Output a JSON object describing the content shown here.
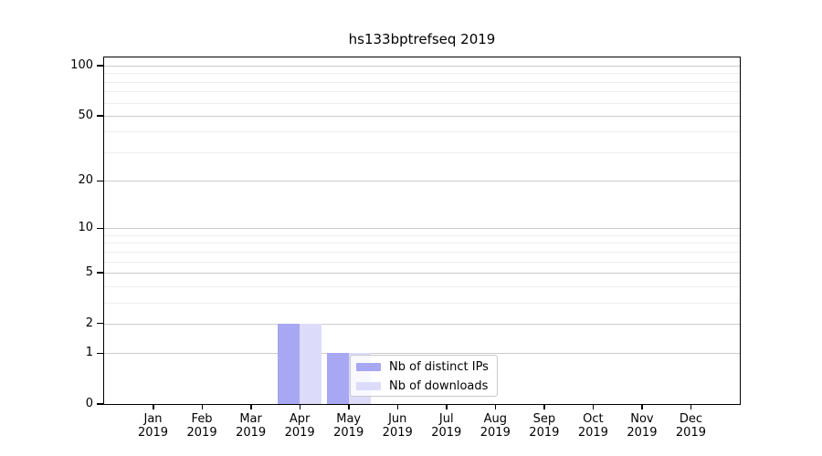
{
  "chart_data": {
    "type": "bar",
    "title": "hs133bptrefseq 2019",
    "categories": [
      "Jan 2019",
      "Feb 2019",
      "Mar 2019",
      "Apr 2019",
      "May 2019",
      "Jun 2019",
      "Jul 2019",
      "Aug 2019",
      "Sep 2019",
      "Oct 2019",
      "Nov 2019",
      "Dec 2019"
    ],
    "series": [
      {
        "name": "Nb of distinct IPs",
        "color": "#a7a7f3",
        "values": [
          0,
          0,
          0,
          2,
          1,
          0,
          0,
          0,
          0,
          0,
          0,
          0
        ]
      },
      {
        "name": "Nb of downloads",
        "color": "#dcdcfa",
        "values": [
          0,
          0,
          0,
          2,
          1,
          0,
          0,
          0,
          0,
          0,
          0,
          0
        ]
      }
    ],
    "xlabel": "",
    "ylabel": "",
    "yscale": "log1p",
    "ylim": [
      0,
      112
    ],
    "yticks": [
      0,
      1,
      2,
      5,
      10,
      20,
      50,
      100
    ],
    "minor_gridlines": [
      3,
      4,
      6,
      7,
      8,
      9,
      30,
      40,
      60,
      70,
      80,
      90
    ],
    "grid": true,
    "legend": {
      "position": "lower center"
    },
    "colors": {
      "major_grid": "#cccccc",
      "minor_grid": "#eeeeee",
      "axis": "#000000",
      "text": "#000000",
      "legend_border": "#c9c9c9",
      "legend_bg": "rgba(255,255,255,0.8)"
    }
  }
}
